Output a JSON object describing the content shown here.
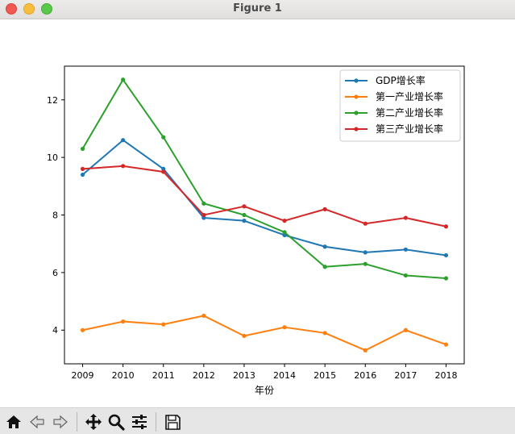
{
  "window": {
    "title": "Figure 1"
  },
  "chart_data": {
    "type": "line",
    "title": "",
    "xlabel": "年份",
    "ylabel": "",
    "x": [
      2009,
      2010,
      2011,
      2012,
      2013,
      2014,
      2015,
      2016,
      2017,
      2018
    ],
    "xticks": [
      "2009",
      "2010",
      "2011",
      "2012",
      "2013",
      "2014",
      "2015",
      "2016",
      "2017",
      "2018"
    ],
    "yticks": [
      "4",
      "6",
      "8",
      "10",
      "12"
    ],
    "xlim": [
      2008.55,
      2018.45
    ],
    "ylim": [
      2.83,
      13.17
    ],
    "grid": false,
    "legend": "top-right",
    "series": [
      {
        "name": "GDP增长率",
        "color": "#1f77b4",
        "values": [
          9.4,
          10.6,
          9.6,
          7.9,
          7.8,
          7.3,
          6.9,
          6.7,
          6.8,
          6.6
        ]
      },
      {
        "name": "第一产业增长率",
        "color": "#ff7f0e",
        "values": [
          4.0,
          4.3,
          4.2,
          4.5,
          3.8,
          4.1,
          3.9,
          3.3,
          4.0,
          3.5
        ]
      },
      {
        "name": "第二产业增长率",
        "color": "#2ca02c",
        "values": [
          10.3,
          12.7,
          10.7,
          8.4,
          8.0,
          7.4,
          6.2,
          6.3,
          5.9,
          5.8
        ]
      },
      {
        "name": "第三产业增长率",
        "color": "#d62728",
        "values": [
          9.6,
          9.7,
          9.5,
          8.0,
          8.3,
          7.8,
          8.2,
          7.7,
          7.9,
          7.6
        ]
      }
    ]
  },
  "toolbar": {
    "buttons": [
      "home-icon",
      "back-icon",
      "forward-icon",
      "pan-icon",
      "zoom-icon",
      "configure-icon",
      "save-icon"
    ]
  }
}
